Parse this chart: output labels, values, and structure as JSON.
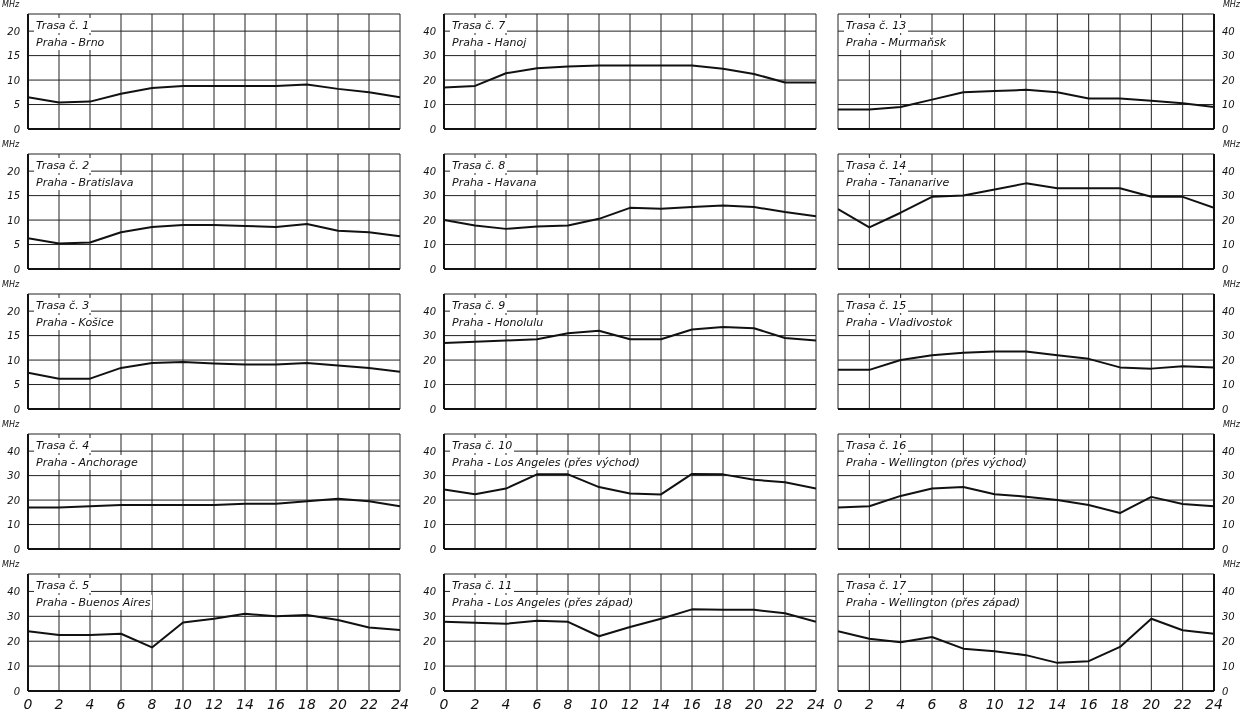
{
  "chart_data": [
    {
      "type": "line",
      "title": "Trasa č. 1",
      "subtitle": "Praha - Brno",
      "ylabel": "MHz",
      "x": [
        0,
        2,
        4,
        6,
        8,
        10,
        12,
        14,
        16,
        18,
        20,
        22,
        24
      ],
      "xlim": [
        0,
        24
      ],
      "xticks": [
        0,
        2,
        4,
        6,
        8,
        10,
        12,
        14,
        16,
        18,
        20,
        22,
        24
      ],
      "ylim": [
        0,
        23.5
      ],
      "yticks": [
        0,
        5,
        10,
        15,
        20
      ],
      "values": [
        6.5,
        5.4,
        5.6,
        7.2,
        8.4,
        8.8,
        8.8,
        8.8,
        8.8,
        9.1,
        8.2,
        7.5,
        6.5
      ],
      "color": "#111111",
      "grid": true,
      "marker": "none",
      "line_style": "solid",
      "tick_labels": "y"
    },
    {
      "type": "line",
      "title": "Trasa č. 7",
      "subtitle": "Praha - Hanoj",
      "x": [
        0,
        2,
        4,
        6,
        8,
        10,
        12,
        14,
        16,
        18,
        20,
        22,
        24
      ],
      "xlim": [
        0,
        24
      ],
      "xticks": [
        0,
        2,
        4,
        6,
        8,
        10,
        12,
        14,
        16,
        18,
        20,
        22,
        24
      ],
      "ylim": [
        0,
        47
      ],
      "yticks": [
        0,
        10,
        20,
        30,
        40
      ],
      "values": [
        17,
        17.6,
        22.8,
        24.8,
        25.5,
        26,
        26,
        26,
        26,
        24.6,
        22.5,
        19,
        19
      ],
      "color": "#111111",
      "grid": true,
      "marker": "none",
      "line_style": "solid",
      "tick_labels": "y"
    },
    {
      "type": "line",
      "title": "Trasa č. 13",
      "subtitle": "Praha - Murmaňsk",
      "y2label": "MHz",
      "x": [
        0,
        2,
        4,
        6,
        8,
        10,
        12,
        14,
        16,
        18,
        20,
        22,
        24
      ],
      "xlim": [
        0,
        24
      ],
      "xticks": [
        0,
        2,
        4,
        6,
        8,
        10,
        12,
        14,
        16,
        18,
        20,
        22,
        24
      ],
      "y2lim": [
        0,
        47
      ],
      "y2ticks": [
        0,
        10,
        20,
        30,
        40
      ],
      "series": [
        {
          "values": [
            8,
            8,
            9,
            12,
            15,
            15.5,
            16,
            15,
            12.5,
            12.5,
            11.5,
            10.5,
            9
          ],
          "axis": "y2",
          "color": "#111111"
        }
      ],
      "grid": true,
      "marker": "none",
      "line_style": "solid",
      "tick_labels": "y"
    },
    {
      "type": "line",
      "title": "Trasa č. 2",
      "subtitle": "Praha - Bratislava",
      "ylabel": "MHz",
      "x": [
        0,
        2,
        4,
        6,
        8,
        10,
        12,
        14,
        16,
        18,
        20,
        22,
        24
      ],
      "xlim": [
        0,
        24
      ],
      "xticks": [
        0,
        2,
        4,
        6,
        8,
        10,
        12,
        14,
        16,
        18,
        20,
        22,
        24
      ],
      "ylim": [
        0,
        23.5
      ],
      "yticks": [
        0,
        5,
        10,
        15,
        20
      ],
      "values": [
        6.3,
        5.2,
        5.4,
        7.5,
        8.6,
        9,
        9,
        8.8,
        8.6,
        9.2,
        7.8,
        7.5,
        6.7
      ],
      "color": "#111111",
      "grid": true,
      "marker": "none",
      "line_style": "solid",
      "tick_labels": "y"
    },
    {
      "type": "line",
      "title": "Trasa č. 8",
      "subtitle": "Praha - Havana",
      "x": [
        0,
        2,
        4,
        6,
        8,
        10,
        12,
        14,
        16,
        18,
        20,
        22,
        24
      ],
      "xlim": [
        0,
        24
      ],
      "xticks": [
        0,
        2,
        4,
        6,
        8,
        10,
        12,
        14,
        16,
        18,
        20,
        22,
        24
      ],
      "ylim": [
        0,
        47
      ],
      "yticks": [
        0,
        10,
        20,
        30,
        40
      ],
      "values": [
        20,
        17.8,
        16.4,
        17.4,
        17.8,
        20.5,
        25,
        24.6,
        25.3,
        26,
        25.3,
        23.3,
        21.6
      ],
      "color": "#111111",
      "grid": true,
      "marker": "none",
      "line_style": "solid",
      "tick_labels": "y"
    },
    {
      "type": "line",
      "title": "Trasa č. 14",
      "subtitle": "Praha - Tananarive",
      "y2label": "MHz",
      "x": [
        0,
        2,
        4,
        6,
        8,
        10,
        12,
        14,
        16,
        18,
        20,
        22,
        24
      ],
      "xlim": [
        0,
        24
      ],
      "xticks": [
        0,
        2,
        4,
        6,
        8,
        10,
        12,
        14,
        16,
        18,
        20,
        22,
        24
      ],
      "y2lim": [
        0,
        47
      ],
      "y2ticks": [
        0,
        10,
        20,
        30,
        40
      ],
      "series": [
        {
          "values": [
            24.5,
            17,
            23,
            29.5,
            30,
            32.5,
            35,
            33,
            33,
            33,
            29.5,
            29.5,
            25
          ],
          "axis": "y2",
          "color": "#111111"
        }
      ],
      "grid": true,
      "marker": "none",
      "line_style": "solid",
      "tick_labels": "y"
    },
    {
      "type": "line",
      "title": "Trasa č. 3",
      "subtitle": "Praha - Košice",
      "ylabel": "MHz",
      "x": [
        0,
        2,
        4,
        6,
        8,
        10,
        12,
        14,
        16,
        18,
        20,
        22,
        24
      ],
      "xlim": [
        0,
        24
      ],
      "xticks": [
        0,
        2,
        4,
        6,
        8,
        10,
        12,
        14,
        16,
        18,
        20,
        22,
        24
      ],
      "ylim": [
        0,
        23.5
      ],
      "yticks": [
        0,
        5,
        10,
        15,
        20
      ],
      "values": [
        7.4,
        6.2,
        6.2,
        8.4,
        9.4,
        9.6,
        9.3,
        9.1,
        9.1,
        9.4,
        8.9,
        8.4,
        7.6
      ],
      "color": "#111111",
      "grid": true,
      "marker": "none",
      "line_style": "solid",
      "tick_labels": "y"
    },
    {
      "type": "line",
      "title": "Trasa č. 9",
      "subtitle": "Praha - Honolulu",
      "x": [
        0,
        2,
        4,
        6,
        8,
        10,
        12,
        14,
        16,
        18,
        20,
        22,
        24
      ],
      "xlim": [
        0,
        24
      ],
      "xticks": [
        0,
        2,
        4,
        6,
        8,
        10,
        12,
        14,
        16,
        18,
        20,
        22,
        24
      ],
      "ylim": [
        0,
        47
      ],
      "yticks": [
        0,
        10,
        20,
        30,
        40
      ],
      "values": [
        27,
        27.5,
        28,
        28.5,
        31,
        32,
        28.5,
        28.5,
        32.5,
        33.5,
        33,
        29,
        28
      ],
      "color": "#111111",
      "grid": true,
      "marker": "none",
      "line_style": "solid",
      "tick_labels": "y"
    },
    {
      "type": "line",
      "title": "Trasa č. 15",
      "subtitle": "Praha - Vladivostok",
      "y2label": "MHz",
      "x": [
        0,
        2,
        4,
        6,
        8,
        10,
        12,
        14,
        16,
        18,
        20,
        22,
        24
      ],
      "xlim": [
        0,
        24
      ],
      "xticks": [
        0,
        2,
        4,
        6,
        8,
        10,
        12,
        14,
        16,
        18,
        20,
        22,
        24
      ],
      "y2lim": [
        0,
        47
      ],
      "y2ticks": [
        0,
        10,
        20,
        30,
        40
      ],
      "series": [
        {
          "values": [
            16,
            16,
            20,
            22,
            23,
            23.5,
            23.5,
            22,
            20.5,
            17,
            16.5,
            17.5,
            17
          ],
          "axis": "y2",
          "color": "#111111"
        }
      ],
      "grid": true,
      "marker": "none",
      "line_style": "solid",
      "tick_labels": "y"
    },
    {
      "type": "line",
      "title": "Trasa č. 4",
      "subtitle": "Praha - Anchorage",
      "ylabel": "MHz",
      "x": [
        0,
        2,
        4,
        6,
        8,
        10,
        12,
        14,
        16,
        18,
        20,
        22,
        24
      ],
      "xlim": [
        0,
        24
      ],
      "xticks": [
        0,
        2,
        4,
        6,
        8,
        10,
        12,
        14,
        16,
        18,
        20,
        22,
        24
      ],
      "ylim": [
        0,
        47
      ],
      "yticks": [
        0,
        10,
        20,
        30,
        40
      ],
      "values": [
        17,
        17,
        17.5,
        18,
        18,
        18,
        18,
        18.5,
        18.5,
        19.5,
        20.5,
        19.5,
        17.5
      ],
      "color": "#111111",
      "grid": true,
      "marker": "none",
      "line_style": "solid",
      "tick_labels": "y"
    },
    {
      "type": "line",
      "title": "Trasa č. 10",
      "subtitle": "Praha - Los Angeles (přes východ)",
      "x": [
        0,
        2,
        4,
        6,
        8,
        10,
        12,
        14,
        16,
        18,
        20,
        22,
        24
      ],
      "xlim": [
        0,
        24
      ],
      "xticks": [
        0,
        2,
        4,
        6,
        8,
        10,
        12,
        14,
        16,
        18,
        20,
        22,
        24
      ],
      "ylim": [
        0,
        47
      ],
      "yticks": [
        0,
        10,
        20,
        30,
        40
      ],
      "values": [
        24.3,
        22.4,
        24.7,
        30.5,
        30.5,
        25.3,
        22.7,
        22.3,
        30.7,
        30.5,
        28.3,
        27.3,
        24.7
      ],
      "color": "#111111",
      "grid": true,
      "marker": "none",
      "line_style": "solid",
      "tick_labels": "y"
    },
    {
      "type": "line",
      "title": "Trasa č. 16",
      "subtitle": "Praha - Wellington (přes východ)",
      "y2label": "MHz",
      "x": [
        0,
        2,
        4,
        6,
        8,
        10,
        12,
        14,
        16,
        18,
        20,
        22,
        24
      ],
      "xlim": [
        0,
        24
      ],
      "xticks": [
        0,
        2,
        4,
        6,
        8,
        10,
        12,
        14,
        16,
        18,
        20,
        22,
        24
      ],
      "y2lim": [
        0,
        47
      ],
      "y2ticks": [
        0,
        10,
        20,
        30,
        40
      ],
      "series": [
        {
          "values": [
            17,
            17.5,
            21.7,
            24.7,
            25.3,
            22.4,
            21.4,
            20,
            18,
            14.7,
            21.3,
            18.4,
            17.5
          ],
          "axis": "y2",
          "color": "#111111"
        }
      ],
      "grid": true,
      "marker": "none",
      "line_style": "solid",
      "tick_labels": "y"
    },
    {
      "type": "line",
      "title": "Trasa č. 5",
      "subtitle": "Praha - Buenos Aires",
      "ylabel": "MHz",
      "x": [
        0,
        2,
        4,
        6,
        8,
        10,
        12,
        14,
        16,
        18,
        20,
        22,
        24
      ],
      "xlim": [
        0,
        24
      ],
      "xticks": [
        0,
        2,
        4,
        6,
        8,
        10,
        12,
        14,
        16,
        18,
        20,
        22,
        24
      ],
      "ylim": [
        0,
        47
      ],
      "yticks": [
        0,
        10,
        20,
        30,
        40
      ],
      "values": [
        24,
        22.5,
        22.5,
        23,
        17.5,
        27.5,
        29,
        31,
        30,
        30.5,
        28.5,
        25.5,
        24.5
      ],
      "color": "#111111",
      "grid": true,
      "marker": "none",
      "line_style": "solid"
    },
    {
      "type": "line",
      "title": "Trasa č. 11",
      "subtitle": "Praha - Los Angeles (přes západ)",
      "x": [
        0,
        2,
        4,
        6,
        8,
        10,
        12,
        14,
        16,
        18,
        20,
        22,
        24
      ],
      "xlim": [
        0,
        24
      ],
      "xticks": [
        0,
        2,
        4,
        6,
        8,
        10,
        12,
        14,
        16,
        18,
        20,
        22,
        24
      ],
      "ylim": [
        0,
        47
      ],
      "yticks": [
        0,
        10,
        20,
        30,
        40
      ],
      "values": [
        27.8,
        27.4,
        27,
        28.2,
        27.8,
        22,
        25.7,
        29,
        32.8,
        32.6,
        32.6,
        31.2,
        27.8
      ],
      "color": "#111111",
      "grid": true,
      "marker": "none",
      "line_style": "solid"
    },
    {
      "type": "line",
      "title": "Trasa č. 17",
      "subtitle": "Praha - Wellington (přes západ)",
      "y2label": "MHz",
      "x": [
        0,
        2,
        4,
        6,
        8,
        10,
        12,
        14,
        16,
        18,
        20,
        22,
        24
      ],
      "xlim": [
        0,
        24
      ],
      "xticks": [
        0,
        2,
        4,
        6,
        8,
        10,
        12,
        14,
        16,
        18,
        20,
        22,
        24
      ],
      "y2lim": [
        0,
        47
      ],
      "y2ticks": [
        0,
        10,
        20,
        30,
        40
      ],
      "series": [
        {
          "values": [
            24,
            21,
            19.6,
            21.7,
            17,
            16,
            14.4,
            11.3,
            12,
            17.7,
            29,
            24.4,
            23
          ],
          "axis": "y2",
          "color": "#111111"
        }
      ],
      "grid": true,
      "marker": "none",
      "line_style": "solid"
    }
  ]
}
